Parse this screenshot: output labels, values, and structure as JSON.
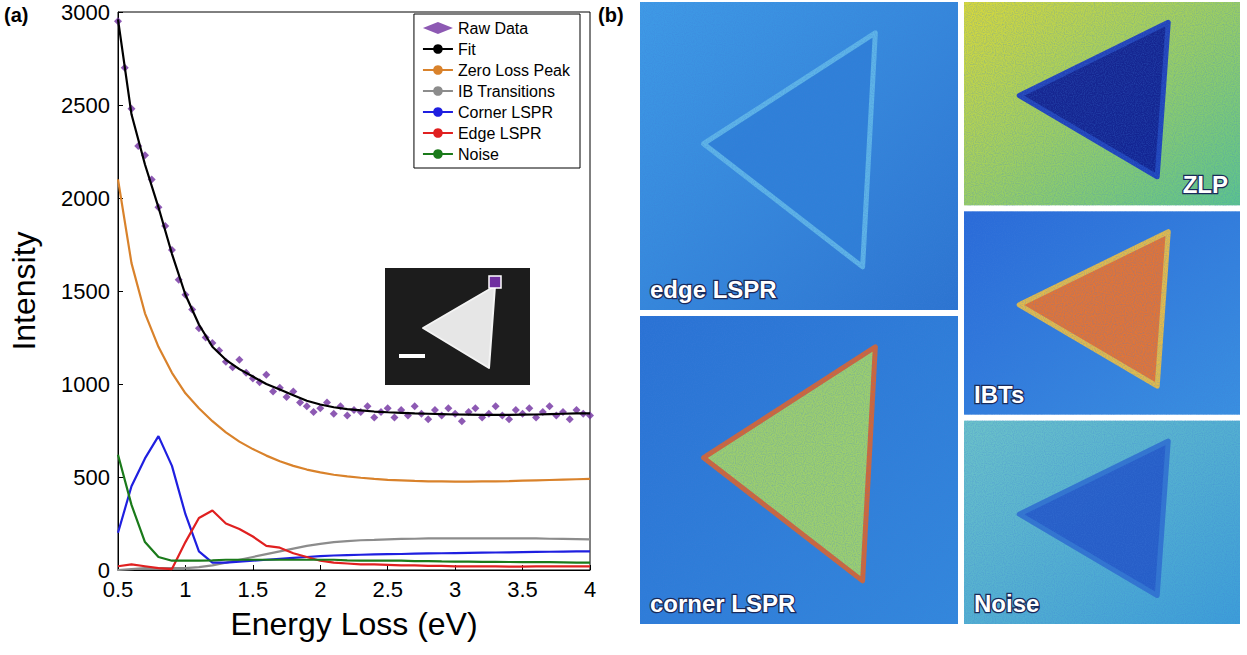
{
  "panel_labels": [
    "(a)",
    "(b)"
  ],
  "chart_data": {
    "type": "line",
    "x_label": "Energy Loss (eV)",
    "y_label": "Intensity",
    "xlim": [
      0.5,
      4
    ],
    "xticks": [
      0.5,
      1,
      1.5,
      2,
      2.5,
      3,
      3.5,
      4
    ],
    "ylim": [
      0,
      3000
    ],
    "yticks": [
      0,
      500,
      1000,
      1500,
      2000,
      2500,
      3000
    ],
    "grid": false,
    "legend": "upper right",
    "x": [
      0.5,
      0.6,
      0.7,
      0.8,
      0.9,
      1.0,
      1.1,
      1.2,
      1.3,
      1.4,
      1.5,
      1.6,
      1.7,
      1.8,
      1.9,
      2.0,
      2.1,
      2.2,
      2.3,
      2.4,
      2.5,
      2.6,
      2.7,
      2.8,
      2.9,
      3.0,
      3.1,
      3.2,
      3.3,
      3.4,
      3.5,
      3.6,
      3.7,
      3.8,
      3.9,
      4.0
    ],
    "series": [
      {
        "name": "Raw Data",
        "type": "scatter",
        "marker": "diamond",
        "color": "#7030a0",
        "x": [
          0.5,
          0.55,
          0.6,
          0.65,
          0.7,
          0.75,
          0.8,
          0.85,
          0.9,
          0.95,
          1.0,
          1.05,
          1.1,
          1.15,
          1.2,
          1.25,
          1.3,
          1.35,
          1.4,
          1.45,
          1.5,
          1.55,
          1.6,
          1.65,
          1.7,
          1.75,
          1.8,
          1.85,
          1.9,
          1.95,
          2.0,
          2.05,
          2.1,
          2.15,
          2.2,
          2.25,
          2.3,
          2.35,
          2.4,
          2.45,
          2.5,
          2.55,
          2.6,
          2.65,
          2.7,
          2.75,
          2.8,
          2.85,
          2.9,
          2.95,
          3.0,
          3.05,
          3.1,
          3.15,
          3.2,
          3.25,
          3.3,
          3.35,
          3.4,
          3.45,
          3.5,
          3.55,
          3.6,
          3.65,
          3.7,
          3.75,
          3.8,
          3.85,
          3.9,
          3.95,
          4.0
        ],
        "values": [
          2950,
          2700,
          2480,
          2280,
          2230,
          2100,
          1950,
          1850,
          1720,
          1560,
          1480,
          1400,
          1300,
          1250,
          1220,
          1180,
          1120,
          1090,
          1130,
          1060,
          1030,
          1010,
          1050,
          960,
          980,
          930,
          960,
          900,
          880,
          850,
          870,
          900,
          840,
          880,
          830,
          860,
          850,
          880,
          820,
          850,
          870,
          820,
          860,
          830,
          880,
          840,
          810,
          860,
          830,
          870,
          840,
          800,
          850,
          870,
          820,
          840,
          880,
          830,
          810,
          860,
          840,
          870,
          820,
          850,
          880,
          830,
          850,
          810,
          860,
          840,
          830
        ]
      },
      {
        "name": "Fit",
        "type": "line",
        "line_style": "solid",
        "color": "#000000",
        "values": [
          2960,
          2450,
          2180,
          1950,
          1700,
          1480,
          1320,
          1200,
          1130,
          1080,
          1040,
          1000,
          970,
          940,
          910,
          890,
          875,
          865,
          858,
          852,
          848,
          845,
          842,
          840,
          838,
          836,
          835,
          834,
          834,
          834,
          835,
          836,
          838,
          840,
          842,
          842
        ]
      },
      {
        "name": "Zero Loss Peak",
        "type": "line",
        "line_style": "solid",
        "color": "#d9822b",
        "values": [
          2100,
          1650,
          1380,
          1200,
          1060,
          950,
          870,
          800,
          740,
          690,
          650,
          615,
          585,
          560,
          540,
          525,
          512,
          503,
          496,
          490,
          485,
          482,
          479,
          477,
          476,
          475,
          475,
          476,
          477,
          478,
          480,
          482,
          484,
          486,
          488,
          490
        ]
      },
      {
        "name": "IB Transitions",
        "type": "line",
        "line_style": "solid",
        "color": "#8c8c8c",
        "values": [
          0,
          5,
          10,
          10,
          10,
          10,
          15,
          25,
          40,
          55,
          70,
          85,
          100,
          115,
          130,
          140,
          150,
          155,
          160,
          162,
          165,
          167,
          168,
          170,
          170,
          170,
          170,
          170,
          170,
          170,
          170,
          170,
          168,
          167,
          166,
          165
        ]
      },
      {
        "name": "Corner LSPR",
        "type": "line",
        "line_style": "solid",
        "color": "#1f1fe0",
        "values": [
          200,
          450,
          600,
          720,
          560,
          300,
          100,
          40,
          40,
          45,
          50,
          55,
          60,
          65,
          70,
          75,
          78,
          80,
          82,
          84,
          85,
          86,
          88,
          89,
          90,
          91,
          92,
          93,
          94,
          95,
          96,
          97,
          98,
          99,
          100,
          100
        ]
      },
      {
        "name": "Edge LSPR",
        "type": "line",
        "line_style": "solid",
        "color": "#e02020",
        "values": [
          20,
          30,
          20,
          10,
          5,
          150,
          280,
          320,
          250,
          220,
          180,
          130,
          120,
          90,
          70,
          50,
          40,
          35,
          30,
          30,
          28,
          25,
          25,
          22,
          22,
          20,
          20,
          20,
          20,
          18,
          18,
          20,
          20,
          20,
          20,
          20
        ]
      },
      {
        "name": "Noise",
        "type": "line",
        "line_style": "solid",
        "color": "#1a7a1a",
        "values": [
          620,
          350,
          150,
          70,
          50,
          50,
          50,
          52,
          55,
          55,
          55,
          55,
          55,
          55,
          55,
          55,
          55,
          52,
          50,
          50,
          50,
          50,
          48,
          48,
          46,
          45,
          45,
          44,
          44,
          43,
          42,
          42,
          42,
          41,
          40,
          40
        ]
      }
    ]
  },
  "maps": [
    "edge LSPR",
    "corner LSPR",
    "ZLP",
    "IBTs",
    "Noise"
  ]
}
